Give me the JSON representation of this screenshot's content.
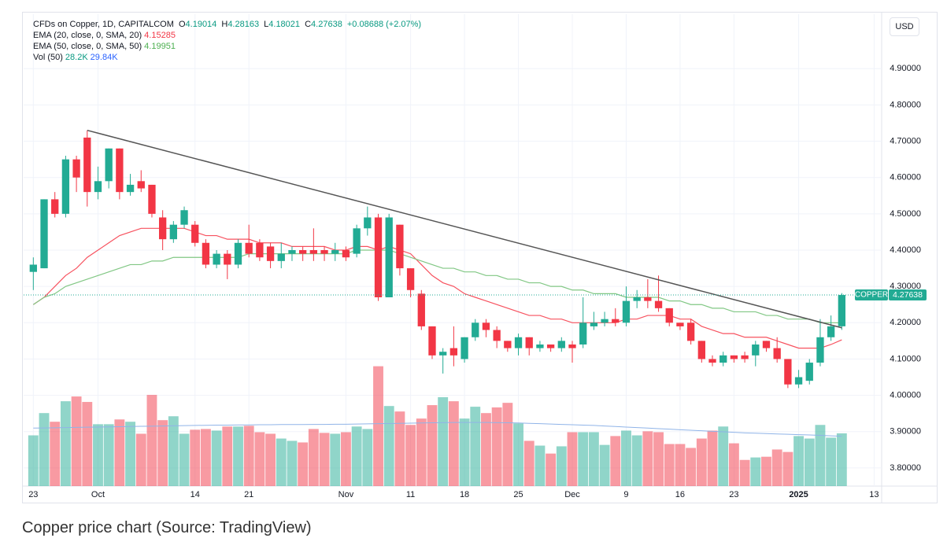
{
  "chart_data": {
    "type": "candlestick",
    "symbol": "CFDs on Copper, 1D, CAPITALCOM",
    "ohlc_labels": [
      "O",
      "H",
      "L",
      "C"
    ],
    "change": "+0.08688 (+2.07%)",
    "currency": "USD",
    "price_label": "COPPER",
    "caption": "Copper price chart (Source: TradingView)",
    "up_color": "#22ab94",
    "down_color": "#f23645",
    "xlim": [
      -0.9,
      78.7
    ],
    "xticks": [
      {
        "value": 0,
        "label": "23"
      },
      {
        "value": 6,
        "label": "Oct"
      },
      {
        "value": 15,
        "label": "14"
      },
      {
        "value": 20,
        "label": "21"
      },
      {
        "value": 29,
        "label": "Nov"
      },
      {
        "value": 35,
        "label": "11"
      },
      {
        "value": 40,
        "label": "18"
      },
      {
        "value": 45,
        "label": "25"
      },
      {
        "value": 50,
        "label": "Dec"
      },
      {
        "value": 55,
        "label": "9"
      },
      {
        "value": 60,
        "label": "16"
      },
      {
        "value": 65,
        "label": "23"
      },
      {
        "value": 71,
        "label": "2025"
      },
      {
        "value": 78,
        "label": "13"
      }
    ],
    "ylim": [
      3.75,
      5.05
    ],
    "yticks": [
      {
        "value": 3.8,
        "label": "3.80000"
      },
      {
        "value": 3.9,
        "label": "3.90000"
      },
      {
        "value": 4.0,
        "label": "4.00000"
      },
      {
        "value": 4.1,
        "label": "4.10000"
      },
      {
        "value": 4.2,
        "label": "4.20000"
      },
      {
        "value": 4.3,
        "label": "4.30000"
      },
      {
        "value": 4.4,
        "label": "4.40000"
      },
      {
        "value": 4.5,
        "label": "4.50000"
      },
      {
        "value": 4.6,
        "label": "4.60000"
      },
      {
        "value": 4.7,
        "label": "4.70000"
      },
      {
        "value": 4.8,
        "label": "4.80000"
      },
      {
        "value": 4.9,
        "label": "4.90000"
      }
    ],
    "grid": true,
    "open": [
      4.34,
      4.35,
      4.54,
      4.5,
      4.65,
      4.71,
      4.56,
      4.59,
      4.68,
      4.56,
      4.59,
      4.58,
      4.49,
      4.43,
      4.47,
      4.47,
      4.42,
      4.36,
      4.39,
      4.36,
      4.42,
      4.42,
      4.41,
      4.37,
      4.39,
      4.4,
      4.4,
      4.4,
      4.39,
      4.4,
      4.39,
      4.46,
      4.49,
      4.27,
      4.47,
      4.35,
      4.28,
      4.19,
      4.11,
      4.13,
      4.1,
      4.16,
      4.2,
      4.18,
      4.15,
      4.13,
      4.16,
      4.13,
      4.14,
      4.13,
      4.14,
      4.14,
      4.19,
      4.2,
      4.21,
      4.2,
      4.26,
      4.27,
      4.26,
      4.24,
      4.2,
      4.2,
      4.15,
      4.1,
      4.09,
      4.11,
      4.11,
      4.11,
      4.15,
      4.13,
      4.1,
      4.03,
      4.04,
      4.09,
      4.16,
      4.19014
    ],
    "high": [
      4.38,
      4.54,
      4.56,
      4.66,
      4.66,
      4.73,
      4.63,
      4.68,
      4.68,
      4.61,
      4.62,
      4.58,
      4.51,
      4.48,
      4.52,
      4.48,
      4.43,
      4.4,
      4.4,
      4.43,
      4.47,
      4.43,
      4.42,
      4.42,
      4.41,
      4.41,
      4.46,
      4.41,
      4.42,
      4.41,
      4.47,
      4.52,
      4.5,
      4.5,
      4.47,
      4.35,
      4.29,
      4.19,
      4.13,
      4.19,
      4.16,
      4.21,
      4.21,
      4.19,
      4.15,
      4.17,
      4.16,
      4.15,
      4.14,
      4.16,
      4.15,
      4.27,
      4.23,
      4.23,
      4.24,
      4.3,
      4.29,
      4.32,
      4.33,
      4.24,
      4.2,
      4.21,
      4.15,
      4.11,
      4.12,
      4.11,
      4.12,
      4.15,
      4.15,
      4.16,
      4.1,
      4.07,
      4.1,
      4.21,
      4.22,
      4.28163
    ],
    "low": [
      4.29,
      4.35,
      4.49,
      4.49,
      4.56,
      4.52,
      4.54,
      4.57,
      4.54,
      4.55,
      4.56,
      4.49,
      4.4,
      4.42,
      4.46,
      4.41,
      4.35,
      4.35,
      4.32,
      4.35,
      4.38,
      4.37,
      4.35,
      4.35,
      4.37,
      4.37,
      4.37,
      4.37,
      4.37,
      4.37,
      4.38,
      4.44,
      4.26,
      4.27,
      4.33,
      4.27,
      4.18,
      4.1,
      4.06,
      4.08,
      4.09,
      4.15,
      4.16,
      4.13,
      4.12,
      4.11,
      4.11,
      4.12,
      4.12,
      4.12,
      4.09,
      4.13,
      4.18,
      4.19,
      4.19,
      4.19,
      4.24,
      4.24,
      4.23,
      4.19,
      4.18,
      4.14,
      4.09,
      4.08,
      4.08,
      4.09,
      4.09,
      4.08,
      4.12,
      4.09,
      4.02,
      4.02,
      4.03,
      4.08,
      4.15,
      4.18021
    ],
    "close": [
      4.36,
      4.54,
      4.5,
      4.65,
      4.6,
      4.56,
      4.59,
      4.68,
      4.56,
      4.58,
      4.57,
      4.5,
      4.43,
      4.47,
      4.51,
      4.42,
      4.36,
      4.39,
      4.36,
      4.42,
      4.39,
      4.38,
      4.37,
      4.39,
      4.4,
      4.39,
      4.39,
      4.39,
      4.4,
      4.38,
      4.46,
      4.49,
      4.27,
      4.49,
      4.35,
      4.29,
      4.19,
      4.11,
      4.12,
      4.11,
      4.16,
      4.2,
      4.18,
      4.15,
      4.13,
      4.16,
      4.13,
      4.14,
      4.13,
      4.15,
      4.13,
      4.2,
      4.2,
      4.21,
      4.2,
      4.26,
      4.27,
      4.26,
      4.24,
      4.2,
      4.19,
      4.15,
      4.1,
      4.09,
      4.11,
      4.1,
      4.1,
      4.14,
      4.13,
      4.1,
      4.03,
      4.05,
      4.09,
      4.16,
      4.19,
      4.27638
    ],
    "series": [
      {
        "name": "EMA (20, close, 0, SMA, 20)",
        "color": "#f7525f",
        "values": [
          4.25,
          4.27,
          4.3,
          4.33,
          4.35,
          4.38,
          4.4,
          4.42,
          4.44,
          4.45,
          4.46,
          4.46,
          4.46,
          4.46,
          4.46,
          4.45,
          4.44,
          4.44,
          4.43,
          4.43,
          4.43,
          4.42,
          4.42,
          4.42,
          4.41,
          4.41,
          4.41,
          4.41,
          4.4,
          4.4,
          4.41,
          4.41,
          4.4,
          4.41,
          4.4,
          4.39,
          4.36,
          4.33,
          4.31,
          4.3,
          4.28,
          4.27,
          4.26,
          4.25,
          4.24,
          4.23,
          4.22,
          4.22,
          4.21,
          4.21,
          4.2,
          4.2,
          4.2,
          4.2,
          4.2,
          4.21,
          4.21,
          4.22,
          4.22,
          4.22,
          4.21,
          4.21,
          4.19,
          4.18,
          4.17,
          4.17,
          4.16,
          4.16,
          4.16,
          4.15,
          4.14,
          4.13,
          4.13,
          4.13,
          4.14,
          4.15285
        ]
      },
      {
        "name": "EMA (50, close, 0, SMA, 50)",
        "color": "#81c784",
        "values": [
          4.25,
          4.27,
          4.28,
          4.3,
          4.31,
          4.32,
          4.33,
          4.34,
          4.35,
          4.36,
          4.36,
          4.37,
          4.37,
          4.38,
          4.38,
          4.38,
          4.38,
          4.38,
          4.38,
          4.38,
          4.39,
          4.39,
          4.39,
          4.39,
          4.39,
          4.39,
          4.39,
          4.39,
          4.39,
          4.39,
          4.4,
          4.4,
          4.4,
          4.4,
          4.39,
          4.38,
          4.37,
          4.36,
          4.35,
          4.35,
          4.34,
          4.34,
          4.33,
          4.33,
          4.32,
          4.32,
          4.31,
          4.31,
          4.3,
          4.3,
          4.29,
          4.29,
          4.28,
          4.28,
          4.28,
          4.27,
          4.27,
          4.27,
          4.27,
          4.26,
          4.26,
          4.25,
          4.25,
          4.24,
          4.24,
          4.23,
          4.23,
          4.23,
          4.22,
          4.22,
          4.21,
          4.21,
          4.21,
          4.2,
          4.2,
          4.19951
        ]
      }
    ],
    "volume": {
      "name": "Vol (50)",
      "vlim": [
        0,
        267000
      ],
      "values": [
        28700,
        41300,
        36400,
        48000,
        50700,
        47600,
        35000,
        35000,
        37700,
        36400,
        29600,
        51600,
        37300,
        39500,
        29600,
        31900,
        32300,
        31400,
        33700,
        33700,
        34100,
        30500,
        29600,
        26900,
        25600,
        24700,
        32300,
        30100,
        29600,
        30500,
        33700,
        32300,
        67800,
        45300,
        42200,
        34600,
        38200,
        45800,
        50300,
        48000,
        38200,
        44900,
        41300,
        44500,
        47100,
        35500,
        25600,
        22900,
        18400,
        22500,
        30500,
        30500,
        30500,
        23300,
        28300,
        31400,
        28700,
        31000,
        30500,
        23800,
        23800,
        21600,
        26900,
        31400,
        33700,
        24200,
        14800,
        16200,
        16600,
        20700,
        19300,
        28300,
        26900,
        34600,
        27400,
        29840
      ],
      "last_label": "29.84K",
      "ma": [
        32800,
        32900,
        33000,
        33100,
        33200,
        33300,
        33400,
        33500,
        33600,
        33700,
        33800,
        33900,
        34000,
        34100,
        34200,
        34300,
        34400,
        34500,
        34500,
        34600,
        34600,
        34700,
        34700,
        34800,
        34800,
        34800,
        34900,
        34900,
        35000,
        35000,
        35100,
        35200,
        35300,
        35400,
        35500,
        35600,
        35700,
        35800,
        35900,
        36000,
        36000,
        36000,
        36000,
        35900,
        35800,
        35700,
        35500,
        35300,
        35100,
        34900,
        34700,
        34500,
        34300,
        34000,
        33700,
        33400,
        33100,
        32800,
        32500,
        32200,
        31900,
        31600,
        31300,
        31000,
        30700,
        30400,
        30100,
        29900,
        29700,
        29500,
        29300,
        29100,
        28900,
        28700,
        28400,
        28200
      ],
      "ma_label": "28.2K",
      "ma_color": "#90b4e8"
    },
    "trendline": {
      "x": [
        5,
        75
      ],
      "y": [
        4.73,
        4.186
      ],
      "color": "#555555"
    }
  }
}
